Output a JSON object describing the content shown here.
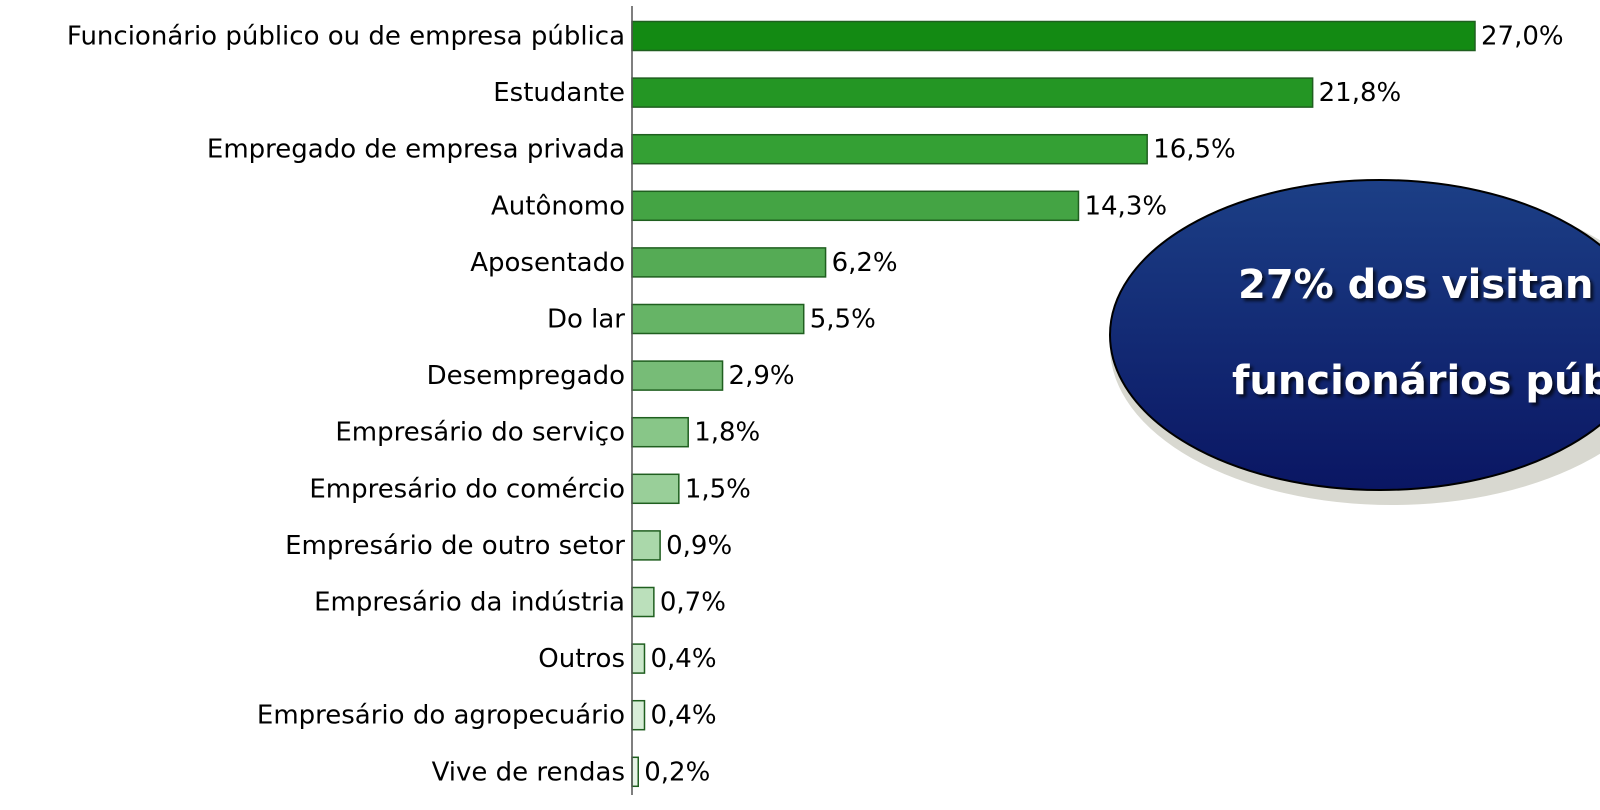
{
  "chart_data": {
    "type": "bar",
    "orientation": "horizontal",
    "categories": [
      "Funcionário público ou de empresa pública",
      "Estudante",
      "Empregado de empresa privada",
      "Autônomo",
      "Aposentado",
      "Do lar",
      "Desempregado",
      "Empresário do serviço",
      "Empresário do comércio",
      "Empresário de outro setor",
      "Empresário da indústria",
      "Outros",
      "Empresário do agropecuário",
      "Vive de rendas"
    ],
    "values": [
      27.0,
      21.8,
      16.5,
      14.3,
      6.2,
      5.5,
      2.9,
      1.8,
      1.5,
      0.9,
      0.7,
      0.4,
      0.4,
      0.2
    ],
    "value_labels": [
      "27,0%",
      "21,8%",
      "16,5%",
      "14,3%",
      "6,2%",
      "5,5%",
      "2,9%",
      "1,8%",
      "1,5%",
      "0,9%",
      "0,7%",
      "0,4%",
      "0,4%",
      "0,2%"
    ],
    "colors": [
      "#138a13",
      "#249624",
      "#34a034",
      "#44a444",
      "#55ab55",
      "#66b466",
      "#77bc77",
      "#88c688",
      "#99cf99",
      "#aad8aa",
      "#bbe0bb",
      "#cce8cc",
      "#d8eed8",
      "#e6f4e6"
    ],
    "xlim": [
      0,
      27
    ],
    "annotation": [
      "27% dos visitan",
      "funcionários púb"
    ]
  }
}
